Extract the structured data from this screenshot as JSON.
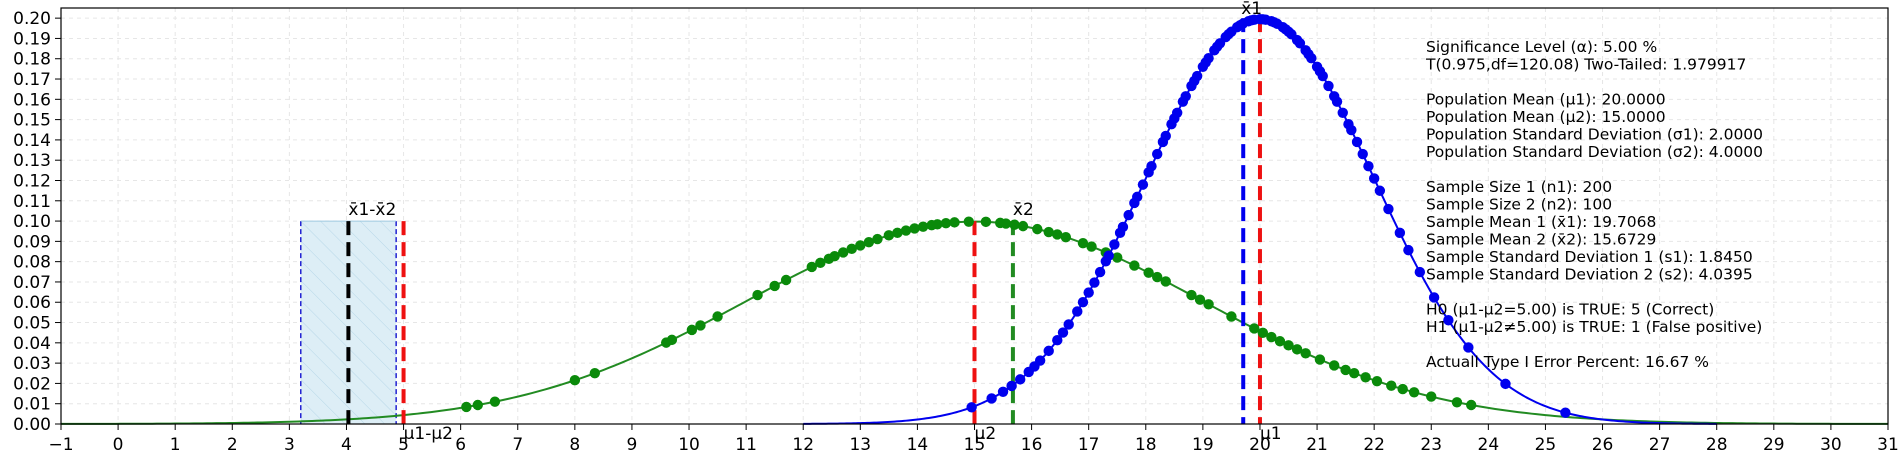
{
  "chart_data": {
    "type": "line",
    "xlim": [
      -1,
      31
    ],
    "ylim": [
      0.0,
      0.205
    ],
    "x_ticks": [
      -1,
      0,
      1,
      2,
      3,
      4,
      5,
      6,
      7,
      8,
      9,
      10,
      11,
      12,
      13,
      14,
      15,
      16,
      17,
      18,
      19,
      20,
      21,
      22,
      23,
      24,
      25,
      26,
      27,
      28,
      29,
      30,
      31
    ],
    "y_ticks": [
      0.0,
      0.01,
      0.02,
      0.03,
      0.04,
      0.05,
      0.06,
      0.07,
      0.08,
      0.09,
      0.1,
      0.11,
      0.12,
      0.13,
      0.14,
      0.15,
      0.16,
      0.17,
      0.18,
      0.19,
      0.2
    ],
    "grid": true,
    "colors": {
      "green": "#228b22",
      "green_dot": "#0a8a0a",
      "blue": "#0000ee",
      "red": "#ee1111",
      "black": "#000000",
      "region_fill": "#ddeef6",
      "region_edge": "#0000cc"
    },
    "series": [
      {
        "curve": "normal",
        "mean": 15,
        "sd": 4,
        "x_range": [
          -1,
          31
        ],
        "color": "green",
        "points_x": [
          6.1,
          6.3,
          6.6,
          8.0,
          8.35,
          9.6,
          9.7,
          10.05,
          10.2,
          10.5,
          11.2,
          11.5,
          11.7,
          12.15,
          12.3,
          12.45,
          12.55,
          12.7,
          12.85,
          13.0,
          13.15,
          13.3,
          13.5,
          13.65,
          13.8,
          13.95,
          14.1,
          14.25,
          14.35,
          14.5,
          14.65,
          14.9,
          15.2,
          15.45,
          15.55,
          15.7,
          15.85,
          16.1,
          16.3,
          16.45,
          16.6,
          16.9,
          17.05,
          17.3,
          17.5,
          17.8,
          18.05,
          18.2,
          18.35,
          18.8,
          18.95,
          19.1,
          19.5,
          19.9,
          20.05,
          20.2,
          20.35,
          20.5,
          20.65,
          20.8,
          21.05,
          21.3,
          21.5,
          21.65,
          21.85,
          22.05,
          22.3,
          22.5,
          22.7,
          23.0,
          23.45,
          23.7
        ]
      },
      {
        "curve": "normal",
        "mean": 20,
        "sd": 2,
        "x_range": [
          12,
          28
        ],
        "color": "blue",
        "points_x": [
          14.95,
          15.3,
          15.5,
          15.65,
          15.8,
          15.95,
          16.05,
          16.15,
          16.3,
          16.45,
          16.55,
          16.65,
          16.8,
          16.9,
          17.0,
          17.1,
          17.2,
          17.3,
          17.35,
          17.45,
          17.55,
          17.6,
          17.7,
          17.8,
          17.85,
          17.95,
          18.05,
          18.1,
          18.2,
          18.3,
          18.35,
          18.45,
          18.5,
          18.55,
          18.65,
          18.7,
          18.8,
          18.85,
          18.9,
          19.0,
          19.05,
          19.1,
          19.2,
          19.25,
          19.3,
          19.4,
          19.45,
          19.5,
          19.6,
          19.65,
          19.7,
          19.8,
          19.85,
          19.9,
          20.0,
          20.05,
          20.1,
          20.2,
          20.25,
          20.3,
          20.4,
          20.45,
          20.5,
          20.55,
          20.65,
          20.7,
          20.8,
          20.85,
          20.9,
          21.0,
          21.05,
          21.1,
          21.2,
          21.3,
          21.35,
          21.45,
          21.55,
          21.6,
          21.7,
          21.8,
          21.9,
          22.0,
          22.1,
          22.25,
          22.45,
          22.6,
          22.8,
          23.05,
          23.3,
          23.65,
          24.3,
          25.35
        ]
      }
    ],
    "vlines": [
      {
        "x": 15.0,
        "y0": 0,
        "y1": 0.1,
        "color": "red",
        "label": "μ2"
      },
      {
        "x": 15.6729,
        "y0": 0,
        "y1": 0.1,
        "color": "green",
        "label": "x̄2"
      },
      {
        "x": 20.0,
        "y0": 0,
        "y1": 0.2,
        "color": "red",
        "label": "μ1"
      },
      {
        "x": 19.7068,
        "y0": 0,
        "y1": 0.2,
        "color": "blue",
        "label": "x̄1"
      },
      {
        "x": 4.0339,
        "y0": 0,
        "y1": 0.1,
        "color": "black",
        "label": "x̄1-x̄2"
      },
      {
        "x": 5.0,
        "y0": 0,
        "y1": 0.1,
        "color": "red",
        "label": "μ1-μ2"
      }
    ],
    "confidence_region": {
      "x0": 3.2,
      "x1": 4.87,
      "y0": 0,
      "y1": 0.1
    },
    "labels": {
      "mu2": "μ2",
      "xbar2": "x̄2",
      "mu1": "μ1",
      "xbar1": "x̄1",
      "diff_xbar": "x̄1-x̄2",
      "diff_mu": "μ1-μ2"
    },
    "info_lines": [
      "Significance Level (α): 5.00 %",
      "T(0.975,df=120.08) Two-Tailed: 1.979917",
      "",
      "Population Mean (μ1): 20.0000",
      "Population Mean (μ2): 15.0000",
      "Population Standard Deviation (σ1): 2.0000",
      "Population Standard Deviation (σ2): 4.0000",
      "",
      "Sample Size 1 (n1): 200",
      "Sample Size 2 (n2): 100",
      "Sample Mean 1 (x̄1): 19.7068",
      "Sample Mean 2 (x̄2): 15.6729",
      "Sample Standard Deviation 1 (s1): 1.8450",
      "Sample Standard Deviation 2 (s2): 4.0395",
      "",
      "H0 (μ1-μ2=5.00) is TRUE: 5 (Correct)",
      "H1 (μ1-μ2≠5.00) is TRUE: 1 (False positive)",
      "",
      "Actuall Type I Error Percent: 16.67 %"
    ]
  }
}
